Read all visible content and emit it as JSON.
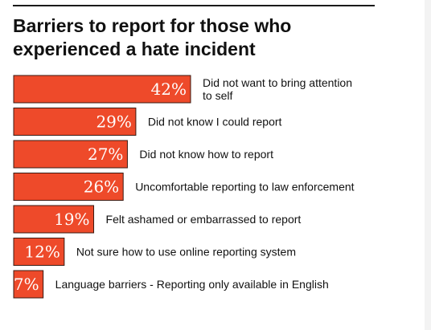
{
  "colors": {
    "bar": "#ee4a2a",
    "bar_stroke": "#3a1a12"
  },
  "chart_data": {
    "type": "bar",
    "orientation": "horizontal",
    "title": "Barriers to report for those who experienced a hate incident",
    "xlim": [
      0,
      42
    ],
    "grid": false,
    "categories": [
      [
        "Did not want to bring attention",
        "to self"
      ],
      [
        "Did not know I could report"
      ],
      [
        "Did not know how to report"
      ],
      [
        "Uncomfortable reporting to law enforcement"
      ],
      [
        "Felt ashamed or embarrassed to report"
      ],
      [
        "Not sure how to use online reporting system"
      ],
      [
        "Language barriers - Reporting only available in English"
      ]
    ],
    "values": [
      42,
      29,
      27,
      26,
      19,
      12,
      7
    ],
    "value_labels": [
      "42%",
      "29%",
      "27%",
      "26%",
      "19%",
      "12%",
      "7%"
    ]
  }
}
